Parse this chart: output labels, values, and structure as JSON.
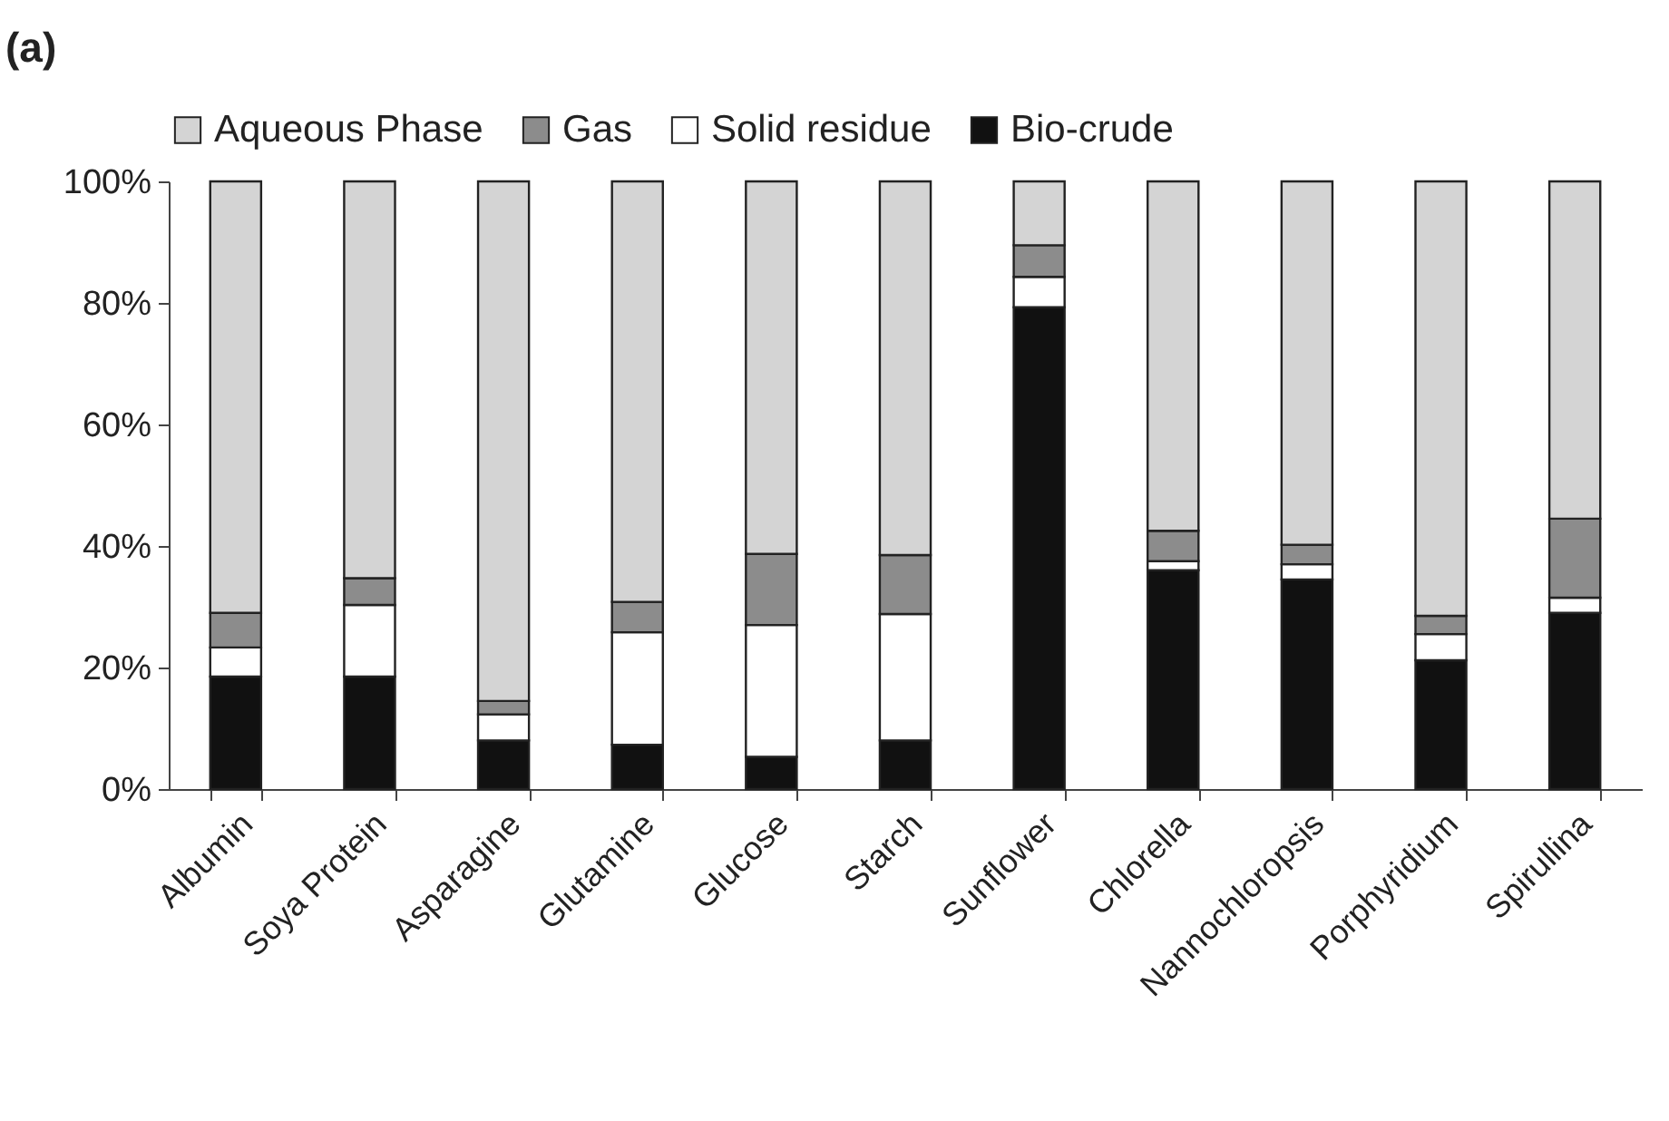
{
  "chart_data": {
    "type": "bar",
    "title": "(a)",
    "stacked": true,
    "legend": "top",
    "grid": false,
    "categories": [
      "Albumin",
      "Soya Protein",
      "Asparagine",
      "Glutamine",
      "Glucose",
      "Starch",
      "Sunflower",
      "Chlorella",
      "Nannochloropsis",
      "Porphyridium",
      "Spirullina"
    ],
    "ylim": [
      0,
      100
    ],
    "yticks": [
      {
        "value": 0,
        "label": "0%"
      },
      {
        "value": 20,
        "label": "20%"
      },
      {
        "value": 40,
        "label": "40%"
      },
      {
        "value": 60,
        "label": "60%"
      },
      {
        "value": 80,
        "label": "80%"
      },
      {
        "value": 100,
        "label": "100%"
      }
    ],
    "series": [
      {
        "name": "Bio-crude",
        "color": "#111111",
        "values": [
          18.5,
          18.5,
          8,
          7.3,
          5.3,
          8,
          79.3,
          36,
          34.5,
          21.2,
          29
        ]
      },
      {
        "name": "Solid residue",
        "color": "#ffffff",
        "values": [
          4.8,
          11.8,
          4.3,
          18.5,
          21.7,
          20.8,
          5,
          1.5,
          2.5,
          4.3,
          2.5
        ]
      },
      {
        "name": "Gas",
        "color": "#8c8c8c",
        "values": [
          5.7,
          4.4,
          2.2,
          5,
          11.7,
          9.7,
          5.2,
          5,
          3.2,
          3,
          13
        ]
      },
      {
        "name": "Aqueous Phase",
        "color": "#d4d4d4",
        "values": [
          71,
          65.3,
          85.5,
          69.2,
          61.3,
          61.5,
          10.5,
          57.5,
          59.8,
          71.5,
          55.5
        ]
      }
    ]
  }
}
